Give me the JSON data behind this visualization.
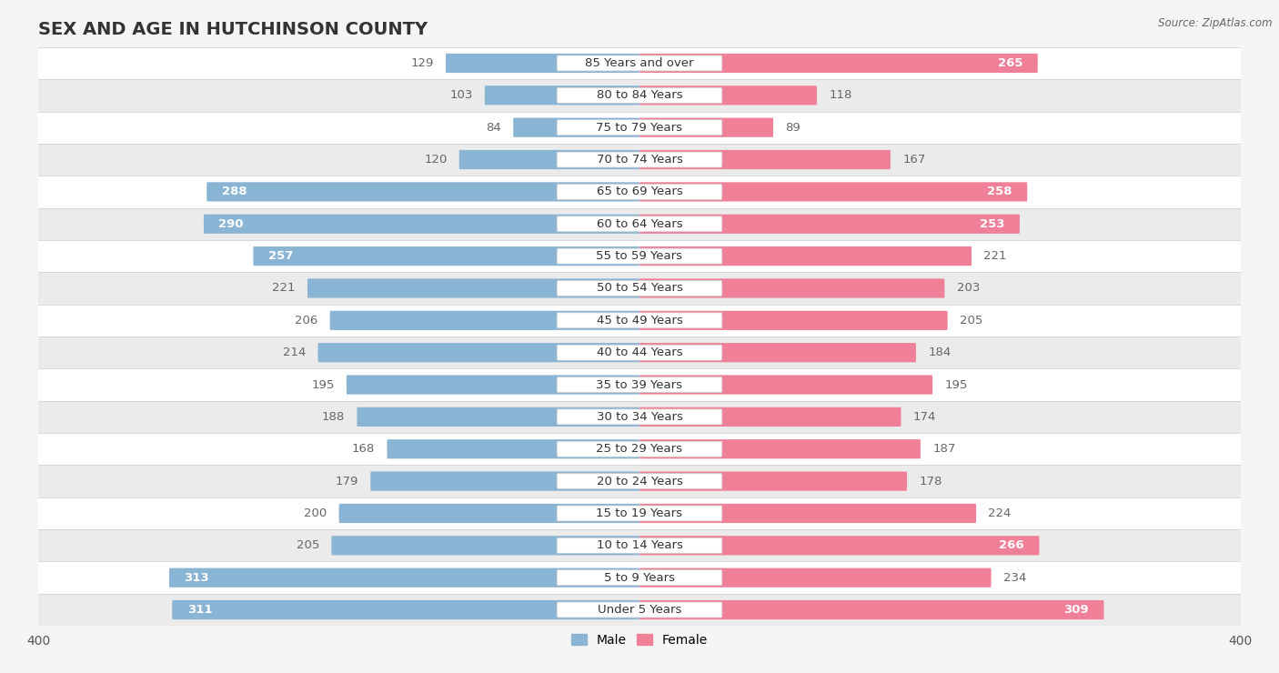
{
  "title": "SEX AND AGE IN HUTCHINSON COUNTY",
  "source": "Source: ZipAtlas.com",
  "categories": [
    "85 Years and over",
    "80 to 84 Years",
    "75 to 79 Years",
    "70 to 74 Years",
    "65 to 69 Years",
    "60 to 64 Years",
    "55 to 59 Years",
    "50 to 54 Years",
    "45 to 49 Years",
    "40 to 44 Years",
    "35 to 39 Years",
    "30 to 34 Years",
    "25 to 29 Years",
    "20 to 24 Years",
    "15 to 19 Years",
    "10 to 14 Years",
    "5 to 9 Years",
    "Under 5 Years"
  ],
  "male": [
    129,
    103,
    84,
    120,
    288,
    290,
    257,
    221,
    206,
    214,
    195,
    188,
    168,
    179,
    200,
    205,
    313,
    311
  ],
  "female": [
    265,
    118,
    89,
    167,
    258,
    253,
    221,
    203,
    205,
    184,
    195,
    174,
    187,
    178,
    224,
    266,
    234,
    309
  ],
  "male_color": "#8ab4d4",
  "female_color": "#f08098",
  "male_label_color_inside": "#ffffff",
  "male_label_color_outside": "#666666",
  "female_label_color_inside": "#ffffff",
  "female_label_color_outside": "#666666",
  "male_inside_threshold": 240,
  "female_inside_threshold": 240,
  "xlim": 400,
  "bar_height": 0.6,
  "background_color": "#f5f5f5",
  "row_bg_colors": [
    "#ffffff",
    "#ebebeb"
  ],
  "title_fontsize": 14,
  "label_fontsize": 9.5,
  "category_fontsize": 9.5,
  "axis_fontsize": 10,
  "legend_fontsize": 10
}
